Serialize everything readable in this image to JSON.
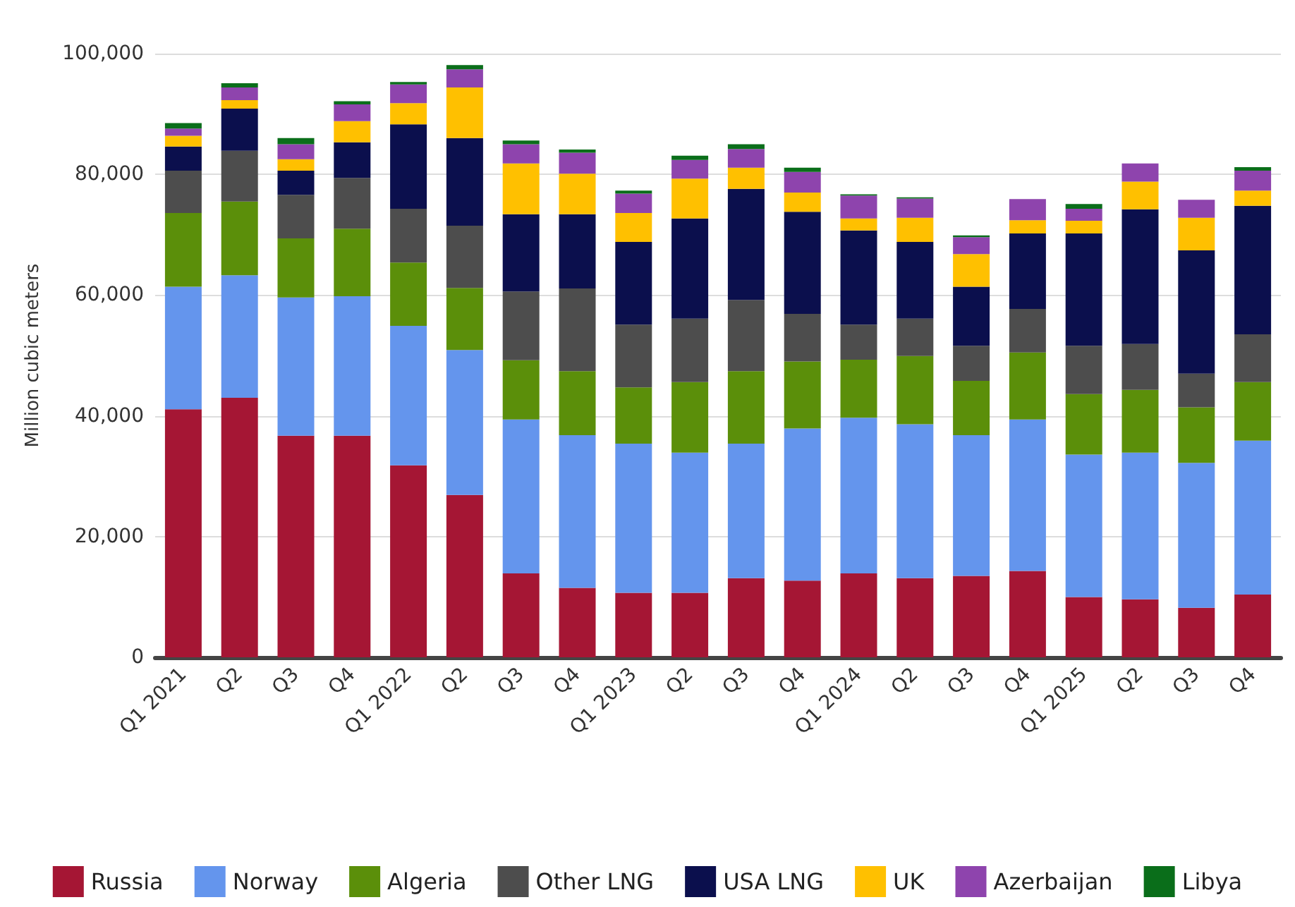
{
  "chart_data": {
    "type": "bar",
    "stacked": true,
    "ylabel": "Million cubic meters",
    "categories": [
      "Q1 2021",
      "Q2",
      "Q3",
      "Q4",
      "Q1 2022",
      "Q2",
      "Q3",
      "Q4",
      "Q1 2023",
      "Q2",
      "Q3",
      "Q4",
      "Q1 2024",
      "Q2",
      "Q3",
      "Q4",
      "Q1 2025",
      "Q2",
      "Q3",
      "Q4"
    ],
    "series": [
      {
        "name": "Russia",
        "color": "#a51634",
        "values": [
          41100,
          43000,
          36700,
          36700,
          31800,
          26900,
          13900,
          11500,
          10700,
          10700,
          13100,
          12700,
          13900,
          13100,
          13500,
          14300,
          10000,
          9600,
          8200,
          10400
        ]
      },
      {
        "name": "Norway",
        "color": "#6495ed",
        "values": [
          20300,
          20300,
          22900,
          23100,
          23100,
          24000,
          25500,
          25300,
          24700,
          23200,
          22300,
          25200,
          25800,
          25500,
          23300,
          25100,
          23600,
          24300,
          24000,
          25500
        ]
      },
      {
        "name": "Algeria",
        "color": "#5b8f0a",
        "values": [
          12200,
          12200,
          9800,
          11200,
          10500,
          10300,
          9800,
          10600,
          9300,
          11700,
          12000,
          11100,
          9600,
          11300,
          9000,
          11100,
          10000,
          10400,
          9200,
          9700
        ]
      },
      {
        "name": "Other LNG",
        "color": "#4d4d4d",
        "values": [
          7000,
          8400,
          7200,
          8400,
          8900,
          10300,
          11400,
          13700,
          10400,
          10500,
          11800,
          7900,
          5800,
          6200,
          5800,
          7200,
          8000,
          7600,
          5600,
          7900
        ]
      },
      {
        "name": "USA LNG",
        "color": "#0b0f4d",
        "values": [
          4000,
          7000,
          4000,
          5900,
          14000,
          14500,
          12800,
          12300,
          13700,
          16600,
          18400,
          16900,
          15600,
          12700,
          9800,
          12500,
          18600,
          22300,
          20400,
          21300
        ]
      },
      {
        "name": "UK",
        "color": "#ffc000",
        "values": [
          1800,
          1400,
          1900,
          3500,
          3500,
          8400,
          8400,
          6700,
          4800,
          6600,
          3500,
          3200,
          2000,
          4000,
          5400,
          2200,
          2100,
          4600,
          5400,
          2500
        ]
      },
      {
        "name": "Azerbaijan",
        "color": "#8e44ad",
        "values": [
          1200,
          2100,
          2500,
          2800,
          3100,
          3000,
          3200,
          3500,
          3200,
          3100,
          3100,
          3400,
          3800,
          3200,
          2800,
          3500,
          2000,
          3000,
          3000,
          3300
        ]
      },
      {
        "name": "Libya",
        "color": "#0a6e1a",
        "values": [
          900,
          700,
          1000,
          500,
          400,
          700,
          600,
          500,
          500,
          700,
          800,
          700,
          200,
          200,
          300,
          null,
          800,
          null,
          null,
          600
        ]
      }
    ],
    "ylim": [
      0,
      100000
    ],
    "yticks": [
      0,
      {
        "value": 20000,
        "label": "20,000"
      },
      {
        "value": 40000,
        "label": "40,000"
      },
      {
        "value": 60000,
        "label": "60,000"
      },
      {
        "value": 80000,
        "label": "80,000"
      },
      {
        "value": 100000,
        "label": "100,000"
      }
    ],
    "grid": "y",
    "legend": "bottom"
  }
}
